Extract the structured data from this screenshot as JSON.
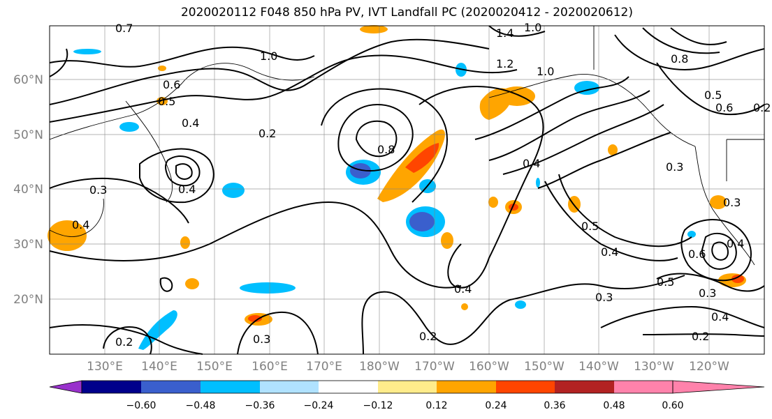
{
  "title": "2020020112 F048 850 hPa PV, IVT Landfall PC (2020020412 - 2020020612)",
  "lat_labels": [
    "60°N",
    "50°N",
    "40°N",
    "30°N",
    "20°N"
  ],
  "lon_labels": [
    "130°E",
    "140°E",
    "150°E",
    "160°E",
    "170°E",
    "180°W",
    "170°W",
    "160°W",
    "150°W",
    "140°W",
    "130°W",
    "120°W"
  ],
  "colorbar": {
    "colors": [
      "#9932cc",
      "#00008b",
      "#3a5fcd",
      "#00bfff",
      "#b0e2ff",
      "#ffffff",
      "#ffec8b",
      "#ffa500",
      "#ff4500",
      "#b22222",
      "#ff82ab"
    ],
    "tick_labels": [
      "−0.60",
      "−0.48",
      "−0.36",
      "−0.24",
      "−0.12",
      "0.12",
      "0.24",
      "0.36",
      "0.48",
      "0.60"
    ]
  },
  "contour_labels": [
    "0.7",
    "1.4",
    "1.0",
    "1.2",
    "1.0",
    "1.0",
    "0.6",
    "0.4",
    "0.5",
    "0.4",
    "0.2",
    "0.8",
    "0.4",
    "0.3",
    "0.4",
    "0.5",
    "0.4",
    "0.3",
    "0.5",
    "0.3",
    "0.4",
    "0.2",
    "0.2",
    "0.3",
    "0.4",
    "0.2",
    "0.6",
    "0.4",
    "0.5",
    "0.8",
    "0.6",
    "0.3",
    "0.3",
    "0.2"
  ]
}
